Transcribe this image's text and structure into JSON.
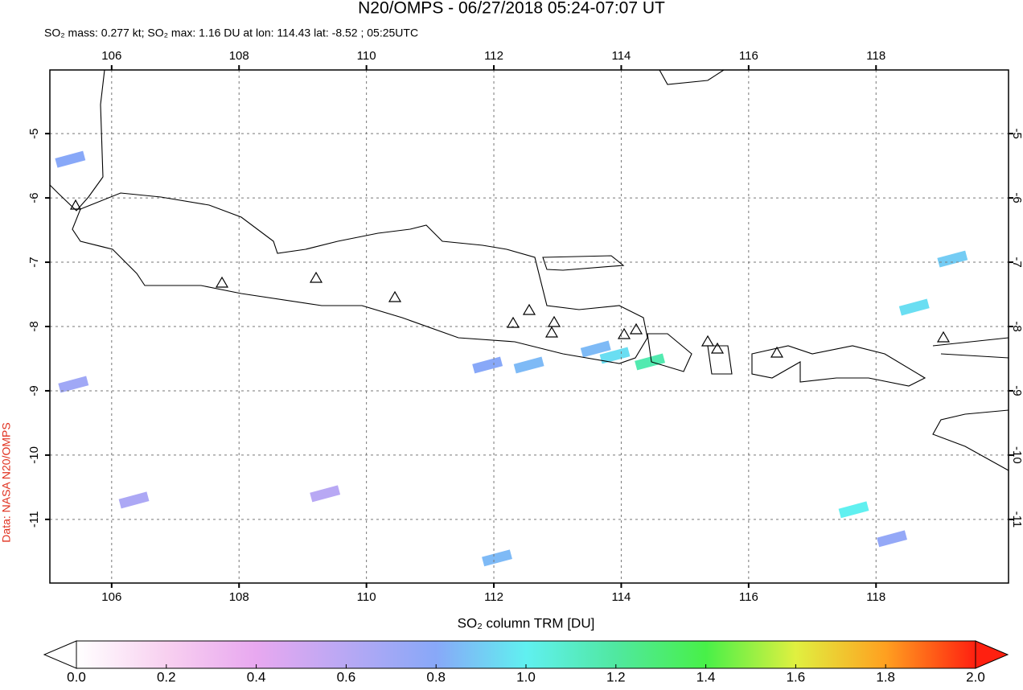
{
  "title": "N20/OMPS - 06/27/2018 05:24-07:07 UT",
  "subtitle": "SO₂ mass: 0.277 kt; SO₂ max: 1.16 DU at lon: 114.43 lat: -8.52 ; 05:25UTC",
  "credit": "Data: NASA N20/OMPS",
  "map": {
    "xlim": [
      105.03,
      120.08
    ],
    "ylim": [
      -11.99,
      -4.01
    ],
    "xticks": [
      106,
      108,
      110,
      112,
      114,
      116,
      118
    ],
    "yticks": [
      -5,
      -6,
      -7,
      -8,
      -9,
      -10,
      -11
    ],
    "grid": true,
    "pixels": [
      {
        "lon": 113.9,
        "lat": -8.45,
        "value": 0.95
      },
      {
        "lon": 113.6,
        "lat": -8.35,
        "value": 0.85
      },
      {
        "lon": 112.55,
        "lat": -8.6,
        "value": 0.85
      },
      {
        "lon": 114.45,
        "lat": -8.55,
        "value": 1.16
      },
      {
        "lon": 117.65,
        "lat": -10.85,
        "value": 1.0
      },
      {
        "lon": 118.6,
        "lat": -7.7,
        "value": 0.95
      },
      {
        "lon": 105.35,
        "lat": -5.4,
        "value": 0.8
      },
      {
        "lon": 106.35,
        "lat": -10.7,
        "value": 0.65
      },
      {
        "lon": 109.35,
        "lat": -10.6,
        "value": 0.6
      },
      {
        "lon": 112.05,
        "lat": -11.6,
        "value": 0.85
      },
      {
        "lon": 119.2,
        "lat": -6.95,
        "value": 0.9
      },
      {
        "lon": 105.4,
        "lat": -8.9,
        "value": 0.7
      },
      {
        "lon": 111.9,
        "lat": -8.6,
        "value": 0.8
      },
      {
        "lon": 118.25,
        "lat": -11.3,
        "value": 0.75
      }
    ]
  },
  "colorbar": {
    "label": "SO₂ column TRM [DU]",
    "clim": [
      0,
      2
    ],
    "colormap": [
      "#ffffff",
      "#f8d0f0",
      "#e8a8f0",
      "#b8a8f4",
      "#88a8f8",
      "#60f0f0",
      "#50e8a0",
      "#48f048",
      "#e0f040",
      "#ffa020",
      "#ff2010"
    ],
    "ticks": [
      {
        "value": 0,
        "label": "0.0"
      },
      {
        "value": 0.2,
        "label": "0.2"
      },
      {
        "value": 0.4,
        "label": "0.4"
      },
      {
        "value": 0.6,
        "label": "0.6"
      },
      {
        "value": 0.8,
        "label": "0.8"
      },
      {
        "value": 1.0,
        "label": "1.0"
      },
      {
        "value": 1.2,
        "label": "1.2"
      },
      {
        "value": 1.4,
        "label": "1.4"
      },
      {
        "value": 1.6,
        "label": "1.6"
      },
      {
        "value": 1.8,
        "label": "1.8"
      },
      {
        "value": 2.0,
        "label": "2.0"
      }
    ]
  }
}
